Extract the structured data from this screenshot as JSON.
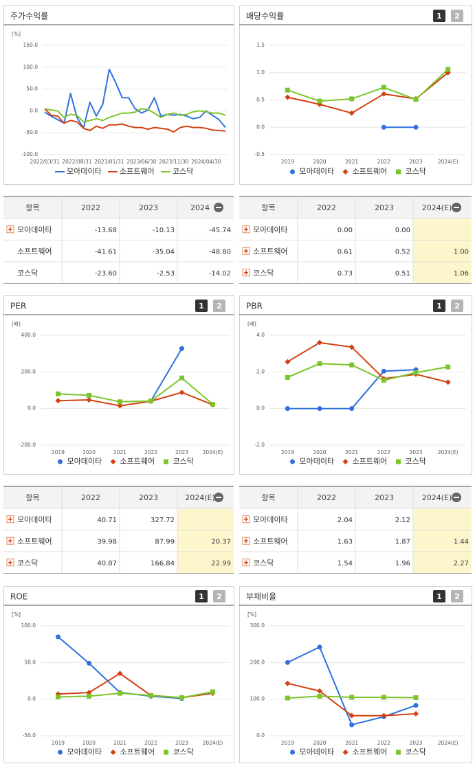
{
  "chart_data": [
    {
      "type": "line",
      "title": "주가수익률",
      "unit": "[%]",
      "categories": [
        "2022/03/31",
        null,
        null,
        null,
        null,
        "2022/08/31",
        null,
        null,
        null,
        null,
        "2023/01/31",
        null,
        null,
        null,
        null,
        "2023/06/30",
        null,
        null,
        null,
        null,
        "2023/11/30",
        null,
        null,
        null,
        null,
        "2024/04/30",
        null,
        null,
        null
      ],
      "ylim": [
        -100,
        150
      ],
      "yticks": [
        {
          "value": 150,
          "label": "150.0"
        },
        {
          "value": 100,
          "label": "100.0"
        },
        {
          "value": 50,
          "label": "50.0"
        },
        {
          "value": 0,
          "label": "0.0"
        },
        {
          "value": -50,
          "label": "-50.0"
        },
        {
          "value": -100,
          "label": "-100.0"
        }
      ],
      "grid": true,
      "series": [
        {
          "name": "모아데이타",
          "color": "#2f6fde",
          "values": [
            -3,
            -12,
            -20,
            -28,
            40,
            -15,
            -40,
            20,
            -12,
            15,
            95,
            65,
            30,
            30,
            5,
            -5,
            2,
            30,
            -12,
            -8,
            -10,
            -8,
            -12,
            -18,
            -15,
            0,
            -10,
            -20,
            -38
          ]
        },
        {
          "name": "소프트웨어",
          "color": "#d4400f",
          "values": [
            5,
            -10,
            -12,
            -28,
            -22,
            -25,
            -40,
            -45,
            -35,
            -40,
            -32,
            -32,
            -30,
            -35,
            -38,
            -38,
            -42,
            -38,
            -40,
            -42,
            -48,
            -38,
            -35,
            -38,
            -38,
            -40,
            -44,
            -45,
            -46
          ]
        },
        {
          "name": "코스닥",
          "color": "#7cc52b",
          "values": [
            5,
            2,
            0,
            -15,
            -8,
            -10,
            -25,
            -22,
            -18,
            -22,
            -15,
            -10,
            -5,
            -5,
            -3,
            5,
            3,
            -5,
            -15,
            -8,
            -5,
            -10,
            -8,
            -2,
            0,
            -2,
            -5,
            -5,
            -10
          ]
        }
      ]
    },
    {
      "type": "line",
      "title": "배당수익률",
      "buttons": [
        "1",
        "2"
      ],
      "categories": [
        "2019",
        "2020",
        "2021",
        "2022",
        "2023",
        "2024(E)"
      ],
      "ylim": [
        -0.5,
        1.5
      ],
      "yticks": [
        1.5,
        {
          "value": 1,
          "label": "1.0"
        },
        0.5,
        {
          "value": 0,
          "label": "0.0"
        },
        -0.5
      ],
      "grid": true,
      "series": [
        {
          "name": "모아데이타",
          "color": "#2f6fde",
          "marker": "circle",
          "values": [
            null,
            null,
            null,
            0,
            0,
            null
          ]
        },
        {
          "name": "소프트웨어",
          "color": "#d4400f",
          "marker": "diamond",
          "values": [
            0.55,
            0.42,
            0.26,
            0.61,
            0.52,
            1.0
          ]
        },
        {
          "name": "코스닥",
          "color": "#7cc52b",
          "marker": "square",
          "values": [
            0.68,
            0.48,
            0.52,
            0.73,
            0.51,
            1.06
          ]
        }
      ]
    },
    {
      "type": "line",
      "title": "PER",
      "buttons": [
        "1",
        "2"
      ],
      "unit": "[배]",
      "categories": [
        "2019",
        "2020",
        "2021",
        "2022",
        "2023",
        "2024(E)"
      ],
      "ylim": [
        -200,
        400
      ],
      "yticks": [
        {
          "value": 400,
          "label": "400.0"
        },
        {
          "value": 200,
          "label": "200.0"
        },
        {
          "value": 0,
          "label": "0.0"
        },
        {
          "value": -200,
          "label": "-200.0"
        }
      ],
      "grid": true,
      "series": [
        {
          "name": "모아데이타",
          "color": "#2f6fde",
          "marker": "circle",
          "values": [
            null,
            null,
            null,
            40.71,
            327.72,
            null
          ]
        },
        {
          "name": "소프트웨어",
          "color": "#d4400f",
          "marker": "diamond",
          "values": [
            43,
            47,
            15,
            39.98,
            87.99,
            20.37
          ]
        },
        {
          "name": "코스닥",
          "color": "#7cc52b",
          "marker": "square",
          "values": [
            80,
            72,
            37,
            40.87,
            166.84,
            22.99
          ]
        }
      ]
    },
    {
      "type": "line",
      "title": "PBR",
      "buttons": [
        "1",
        "2"
      ],
      "unit": "[배]",
      "categories": [
        "2019",
        "2020",
        "2021",
        "2022",
        "2023",
        "2024(E)"
      ],
      "ylim": [
        -2,
        4
      ],
      "yticks": [
        {
          "value": 4,
          "label": "4.0"
        },
        {
          "value": 2,
          "label": "2.0"
        },
        {
          "value": 0,
          "label": "0.0"
        },
        {
          "value": -2,
          "label": "-2.0"
        }
      ],
      "grid": true,
      "series": [
        {
          "name": "모아데이타",
          "color": "#2f6fde",
          "marker": "circle",
          "values": [
            0,
            0,
            0,
            2.04,
            2.12,
            null
          ]
        },
        {
          "name": "소프트웨어",
          "color": "#d4400f",
          "marker": "diamond",
          "values": [
            2.55,
            3.6,
            3.35,
            1.63,
            1.87,
            1.44
          ]
        },
        {
          "name": "코스닥",
          "color": "#7cc52b",
          "marker": "square",
          "values": [
            1.7,
            2.45,
            2.38,
            1.54,
            1.96,
            2.27
          ]
        }
      ]
    },
    {
      "type": "line",
      "title": "ROE",
      "buttons": [
        "1",
        "2"
      ],
      "unit": "[%]",
      "categories": [
        "2019",
        "2020",
        "2021",
        "2022",
        "2023",
        "2024(E)"
      ],
      "ylim": [
        -50,
        100
      ],
      "yticks": [
        {
          "value": 100,
          "label": "100.0"
        },
        {
          "value": 50,
          "label": "50.0"
        },
        {
          "value": 0,
          "label": "0.0"
        },
        {
          "value": -50,
          "label": "-50.0"
        }
      ],
      "grid": true,
      "series": [
        {
          "name": "모아데이타",
          "color": "#2f6fde",
          "marker": "circle",
          "values": [
            85,
            49,
            9,
            4,
            1,
            null
          ]
        },
        {
          "name": "소프트웨어",
          "color": "#d4400f",
          "marker": "diamond",
          "values": [
            7,
            9,
            35,
            5,
            2,
            8
          ]
        },
        {
          "name": "코스닥",
          "color": "#7cc52b",
          "marker": "square",
          "values": [
            3,
            4,
            8,
            5,
            2,
            10
          ]
        }
      ]
    },
    {
      "type": "line",
      "title": "부채비율",
      "buttons": [
        "1",
        "2"
      ],
      "unit": "[%]",
      "categories": [
        "2019",
        "2020",
        "2021",
        "2022",
        "2023",
        "2024(E)"
      ],
      "ylim": [
        0,
        300
      ],
      "yticks": [
        {
          "value": 300,
          "label": "300.0"
        },
        {
          "value": 200,
          "label": "200.0"
        },
        {
          "value": 100,
          "label": "100.0"
        },
        {
          "value": 0,
          "label": "0.0"
        }
      ],
      "grid": true,
      "series": [
        {
          "name": "모아데이타",
          "color": "#2f6fde",
          "marker": "circle",
          "values": [
            200,
            242,
            30,
            52,
            83,
            null
          ]
        },
        {
          "name": "소프트웨어",
          "color": "#d4400f",
          "marker": "diamond",
          "values": [
            143,
            122,
            55,
            55,
            60,
            null
          ]
        },
        {
          "name": "코스닥",
          "color": "#7cc52b",
          "marker": "square",
          "values": [
            103,
            108,
            105,
            105,
            104,
            null
          ]
        }
      ]
    }
  ],
  "tables": [
    {
      "headers": [
        "항목",
        "2022",
        "2023",
        "2024"
      ],
      "rows": [
        {
          "label": "모아데이타",
          "values": [
            "-13.68",
            "-10.13",
            "-45.74"
          ]
        },
        {
          "label": "소프트웨어",
          "values": [
            "-41.61",
            "-35.04",
            "-48.80"
          ]
        },
        {
          "label": "코스닥",
          "values": [
            "-23.60",
            "-2.53",
            "-14.02"
          ]
        }
      ]
    },
    {
      "headers": [
        "항목",
        "2022",
        "2023",
        "2024(E)"
      ],
      "rows": [
        {
          "label": "모아데이타",
          "values": [
            "0.00",
            "0.00",
            null
          ]
        },
        {
          "label": "소프트웨어",
          "values": [
            "0.61",
            "0.52",
            "1.00"
          ]
        },
        {
          "label": "코스닥",
          "values": [
            "0.73",
            "0.51",
            "1.06"
          ]
        }
      ]
    },
    {
      "headers": [
        "항목",
        "2022",
        "2023",
        "2024(E)"
      ],
      "rows": [
        {
          "label": "모아데이타",
          "values": [
            "40.71",
            "327.72",
            null
          ]
        },
        {
          "label": "소프트웨어",
          "values": [
            "39.98",
            "87.99",
            "20.37"
          ]
        },
        {
          "label": "코스닥",
          "values": [
            "40.87",
            "166.84",
            "22.99"
          ]
        }
      ]
    },
    {
      "headers": [
        "항목",
        "2022",
        "2023",
        "2024(E)"
      ],
      "rows": [
        {
          "label": "모아데이타",
          "values": [
            "2.04",
            "2.12",
            null
          ]
        },
        {
          "label": "소프트웨어",
          "values": [
            "1.63",
            "1.87",
            "1.44"
          ]
        },
        {
          "label": "코스닥",
          "values": [
            "1.54",
            "1.96",
            "2.27"
          ]
        }
      ]
    }
  ]
}
